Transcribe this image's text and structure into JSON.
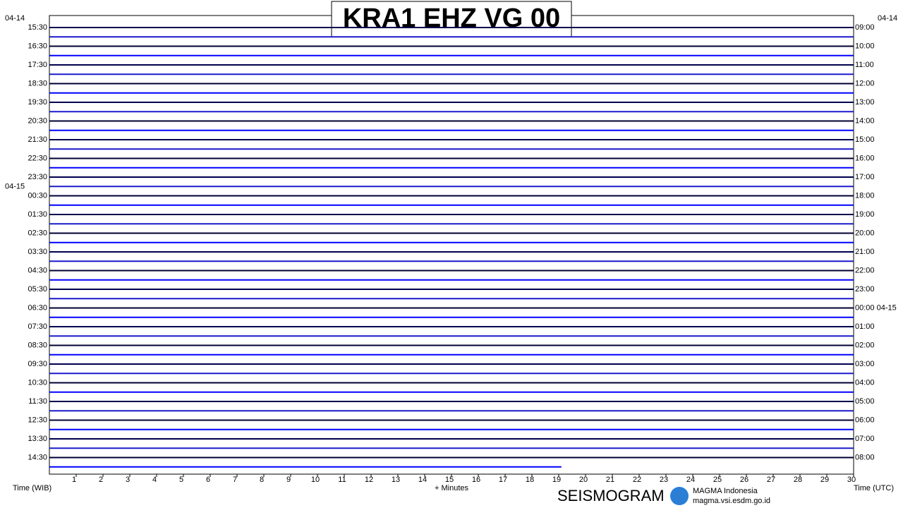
{
  "chart_data": {
    "type": "helicorder",
    "title": "KRA1 EHZ VG 00",
    "left_dates": [
      "04-14",
      "04-15"
    ],
    "right_date": "04-14",
    "left_labels": [
      "15:30",
      "16:30",
      "17:30",
      "18:30",
      "19:30",
      "20:30",
      "21:30",
      "22:30",
      "23:30",
      "00:30",
      "01:30",
      "02:30",
      "03:30",
      "04:30",
      "05:30",
      "06:30",
      "07:30",
      "08:30",
      "09:30",
      "10:30",
      "11:30",
      "12:30",
      "13:30",
      "14:30"
    ],
    "right_labels": [
      "09:00",
      "10:00",
      "11:00",
      "12:00",
      "13:00",
      "14:00",
      "15:00",
      "16:00",
      "17:00",
      "18:00",
      "19:00",
      "20:00",
      "21:00",
      "22:00",
      "23:00",
      "00:00 04-15",
      "01:00",
      "02:00",
      "03:00",
      "04:00",
      "05:00",
      "06:00",
      "07:00",
      "08:00"
    ],
    "xlim": [
      0,
      30
    ],
    "xticks": [
      1,
      2,
      3,
      4,
      5,
      6,
      7,
      8,
      9,
      10,
      11,
      12,
      13,
      14,
      15,
      16,
      17,
      18,
      19,
      20,
      21,
      22,
      23,
      24,
      25,
      26,
      27,
      28,
      29,
      30
    ],
    "data_end_minute": 19.1,
    "trace_colors": [
      "#00004d",
      "#1a1acc",
      "#000033",
      "#0000ff"
    ],
    "x_label_left": "Time (WIB)",
    "x_label_center": "+ Minutes",
    "x_label_right": "Time (UTC)",
    "footer_title": "SEISMOGRAM",
    "footer_org": "MAGMA Indonesia",
    "footer_url": "magma.vsi.esdm.go.id"
  }
}
